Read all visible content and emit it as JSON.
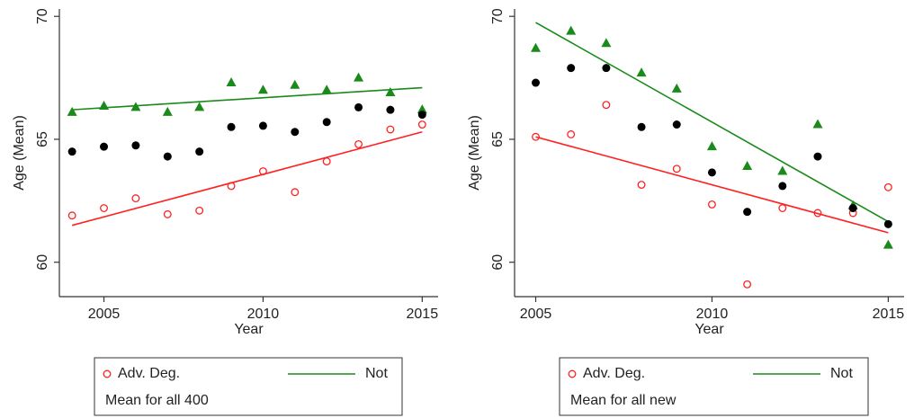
{
  "chart_data": [
    {
      "type": "scatter",
      "x_label": "Year",
      "y_label": "Age (Mean)",
      "xlim": [
        2003.6,
        2015.5
      ],
      "ylim": [
        58.6,
        70.3
      ],
      "xticks": [
        2005,
        2010,
        2015
      ],
      "yticks": [
        60,
        65,
        70
      ],
      "x": [
        2004,
        2005,
        2006,
        2007,
        2008,
        2009,
        2010,
        2011,
        2012,
        2013,
        2014,
        2015
      ],
      "series": [
        {
          "name": "Adv. Deg.",
          "color": "#ff2020",
          "marker": "hollow-circle",
          "legend": "circle",
          "values": [
            61.9,
            62.2,
            62.6,
            61.95,
            62.1,
            63.1,
            63.7,
            62.85,
            64.1,
            64.8,
            65.4,
            65.6
          ],
          "fit": [
            61.5,
            65.3
          ]
        },
        {
          "name": "Not",
          "color": "#1a8a1a",
          "marker": "triangle",
          "legend": "line",
          "values": [
            66.1,
            66.35,
            66.3,
            66.1,
            66.3,
            67.3,
            67.0,
            67.2,
            67.0,
            67.5,
            66.9,
            66.2
          ],
          "fit": [
            66.2,
            67.1
          ]
        },
        {
          "name": "Mean for all 400",
          "color": "#000000",
          "marker": "dot",
          "legend": "none",
          "values": [
            64.5,
            64.7,
            64.75,
            64.3,
            64.5,
            65.5,
            65.55,
            65.3,
            65.7,
            66.3,
            66.2,
            66.0
          ]
        }
      ]
    },
    {
      "type": "scatter",
      "x_label": "Year",
      "y_label": "Age (Mean)",
      "xlim": [
        2004.4,
        2015.45
      ],
      "ylim": [
        58.6,
        70.3
      ],
      "xticks": [
        2005,
        2010,
        2015
      ],
      "yticks": [
        60,
        65,
        70
      ],
      "x": [
        2005,
        2006,
        2007,
        2008,
        2009,
        2010,
        2011,
        2012,
        2013,
        2014,
        2015
      ],
      "series": [
        {
          "name": "Adv. Deg.",
          "color": "#ff2020",
          "marker": "hollow-circle",
          "legend": "circle",
          "values": [
            65.1,
            65.2,
            66.4,
            63.15,
            63.8,
            62.35,
            59.1,
            62.2,
            62.0,
            62.0,
            63.05
          ],
          "fit": [
            65.1,
            61.2
          ]
        },
        {
          "name": "Not",
          "color": "#1a8a1a",
          "marker": "triangle",
          "legend": "line",
          "values": [
            68.7,
            69.4,
            68.9,
            67.7,
            67.05,
            64.7,
            63.9,
            63.7,
            65.6,
            62.3,
            60.7
          ],
          "fit": [
            69.75,
            61.65
          ]
        },
        {
          "name": "Mean for all new",
          "color": "#000000",
          "marker": "dot",
          "legend": "none",
          "values": [
            67.3,
            67.9,
            67.9,
            65.5,
            65.6,
            63.65,
            62.05,
            63.1,
            64.3,
            62.2,
            61.55
          ]
        }
      ]
    }
  ]
}
